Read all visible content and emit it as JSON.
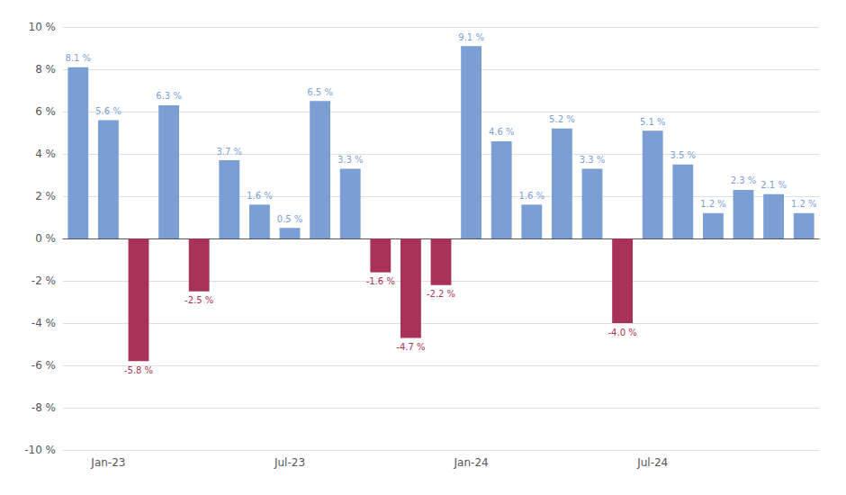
{
  "chart_data": {
    "type": "bar",
    "categories": [
      null,
      "Jan-23",
      null,
      null,
      null,
      null,
      null,
      "Jul-23",
      null,
      null,
      null,
      null,
      null,
      "Jan-24",
      null,
      null,
      null,
      null,
      null,
      "Jul-24",
      null,
      null,
      null,
      null,
      null
    ],
    "values": [
      8.1,
      5.6,
      -5.8,
      6.3,
      -2.5,
      3.7,
      1.6,
      0.5,
      6.5,
      3.3,
      -1.6,
      -4.7,
      -2.2,
      9.1,
      4.6,
      1.6,
      5.2,
      3.3,
      -4.0,
      5.1,
      3.5,
      1.2,
      2.3,
      2.1,
      1.2
    ],
    "value_labels": [
      "8.1 %",
      "5.6 %",
      "-5.8 %",
      "6.3 %",
      "-2.5 %",
      "3.7 %",
      "1.6 %",
      "0.5 %",
      "6.5 %",
      "3.3 %",
      "-1.6 %",
      "-4.7 %",
      "-2.2 %",
      "9.1 %",
      "4.6 %",
      "1.6 %",
      "5.2 %",
      "3.3 %",
      "-4.0 %",
      "5.1 %",
      "3.5 %",
      "1.2 %",
      "2.3 %",
      "2.1 %",
      "1.2 %"
    ],
    "colors": [
      "#7B9FD4",
      "#7B9FD4",
      "#A83258",
      "#7B9FD4",
      "#A83258",
      "#7B9FD4",
      "#7B9FD4",
      "#7B9FD4",
      "#7B9FD4",
      "#7B9FD4",
      "#A83258",
      "#A83258",
      "#A83258",
      "#7B9FD4",
      "#7B9FD4",
      "#7B9FD4",
      "#7B9FD4",
      "#7B9FD4",
      "#A83258",
      "#7B9FD4",
      "#7B9FD4",
      "#7B9FD4",
      "#7B9FD4",
      "#7B9FD4",
      "#7B9FD4"
    ],
    "ylim": [
      -10,
      10
    ],
    "yticks": [
      {
        "value": -10,
        "label": "-10 %"
      },
      {
        "value": -8,
        "label": "-8 %"
      },
      {
        "value": -6,
        "label": "-6 %"
      },
      {
        "value": -4,
        "label": "-4 %"
      },
      {
        "value": -2,
        "label": "-2 %"
      },
      {
        "value": 0,
        "label": "0 %"
      },
      {
        "value": 2,
        "label": "2 %"
      },
      {
        "value": 4,
        "label": "4 %"
      },
      {
        "value": 6,
        "label": "6 %"
      },
      {
        "value": 8,
        "label": "8 %"
      },
      {
        "value": 10,
        "label": "10 %"
      }
    ],
    "grid": true,
    "data_labels": true
  }
}
